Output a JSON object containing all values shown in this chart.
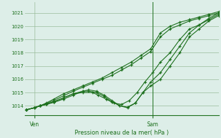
{
  "bg_color": "#ddeee8",
  "grid_color": "#99bb99",
  "line_color": "#1a6e1a",
  "marker_color": "#1a6e1a",
  "text_color": "#1a6e1a",
  "xlabel": "Pression niveau de la mer( hPa )",
  "ylabel_ticks": [
    1014,
    1015,
    1016,
    1017,
    1018,
    1019,
    1020,
    1021
  ],
  "ylim": [
    1013.3,
    1021.8
  ],
  "xlim": [
    0.0,
    1.0
  ],
  "xtick_labels": [
    "Ven",
    "Sam"
  ],
  "xtick_positions": [
    0.05,
    0.66
  ],
  "vline_pos": 0.66,
  "series": [
    {
      "x": [
        0.01,
        0.05,
        0.08,
        0.11,
        0.15,
        0.2,
        0.25,
        0.3,
        0.35,
        0.4,
        0.45,
        0.5,
        0.55,
        0.6,
        0.65,
        0.7,
        0.75,
        0.8,
        0.85,
        0.9,
        0.95,
        1.0
      ],
      "y": [
        1013.7,
        1013.85,
        1014.0,
        1014.2,
        1014.5,
        1014.9,
        1015.2,
        1015.5,
        1015.8,
        1016.1,
        1016.5,
        1016.9,
        1017.3,
        1017.8,
        1018.3,
        1019.5,
        1020.0,
        1020.3,
        1020.5,
        1020.7,
        1020.9,
        1021.1
      ]
    },
    {
      "x": [
        0.01,
        0.05,
        0.08,
        0.11,
        0.15,
        0.2,
        0.25,
        0.3,
        0.35,
        0.4,
        0.45,
        0.5,
        0.55,
        0.6,
        0.65,
        0.7,
        0.75,
        0.8,
        0.85,
        0.9,
        0.95,
        1.0
      ],
      "y": [
        1013.7,
        1013.85,
        1014.0,
        1014.15,
        1014.4,
        1014.75,
        1015.1,
        1015.4,
        1015.7,
        1016.0,
        1016.3,
        1016.7,
        1017.1,
        1017.6,
        1018.1,
        1019.2,
        1019.8,
        1020.1,
        1020.4,
        1020.6,
        1020.8,
        1021.0
      ]
    },
    {
      "x": [
        0.01,
        0.05,
        0.08,
        0.11,
        0.15,
        0.2,
        0.25,
        0.3,
        0.35,
        0.38,
        0.42,
        0.46,
        0.5,
        0.54,
        0.58,
        0.62,
        0.66,
        0.7,
        0.75,
        0.8,
        0.85,
        0.9,
        0.95,
        1.0
      ],
      "y": [
        1013.7,
        1013.85,
        1014.0,
        1014.1,
        1014.3,
        1014.6,
        1014.9,
        1015.0,
        1015.0,
        1014.8,
        1014.5,
        1014.2,
        1014.1,
        1014.4,
        1015.0,
        1015.8,
        1016.5,
        1017.3,
        1018.0,
        1019.0,
        1019.8,
        1020.1,
        1020.5,
        1020.9
      ]
    },
    {
      "x": [
        0.01,
        0.05,
        0.08,
        0.11,
        0.15,
        0.2,
        0.25,
        0.3,
        0.33,
        0.37,
        0.41,
        0.45,
        0.49,
        0.53,
        0.57,
        0.61,
        0.65,
        0.7,
        0.75,
        0.8,
        0.85,
        0.9,
        0.95,
        1.0
      ],
      "y": [
        1013.7,
        1013.85,
        1014.0,
        1014.1,
        1014.3,
        1014.6,
        1014.9,
        1015.1,
        1015.1,
        1015.0,
        1014.7,
        1014.3,
        1014.0,
        1013.9,
        1014.2,
        1015.0,
        1015.8,
        1016.5,
        1017.5,
        1018.5,
        1019.5,
        1020.1,
        1020.6,
        1021.0
      ]
    },
    {
      "x": [
        0.01,
        0.05,
        0.08,
        0.11,
        0.15,
        0.2,
        0.25,
        0.3,
        0.33,
        0.37,
        0.41,
        0.45,
        0.49,
        0.53,
        0.57,
        0.61,
        0.65,
        0.7,
        0.75,
        0.8,
        0.85,
        0.9,
        0.95,
        1.0
      ],
      "y": [
        1013.7,
        1013.85,
        1014.0,
        1014.1,
        1014.25,
        1014.5,
        1014.8,
        1015.1,
        1015.2,
        1015.1,
        1014.8,
        1014.4,
        1014.0,
        1013.85,
        1014.2,
        1015.0,
        1015.5,
        1016.0,
        1017.0,
        1018.0,
        1019.2,
        1019.8,
        1020.4,
        1020.8
      ]
    }
  ]
}
